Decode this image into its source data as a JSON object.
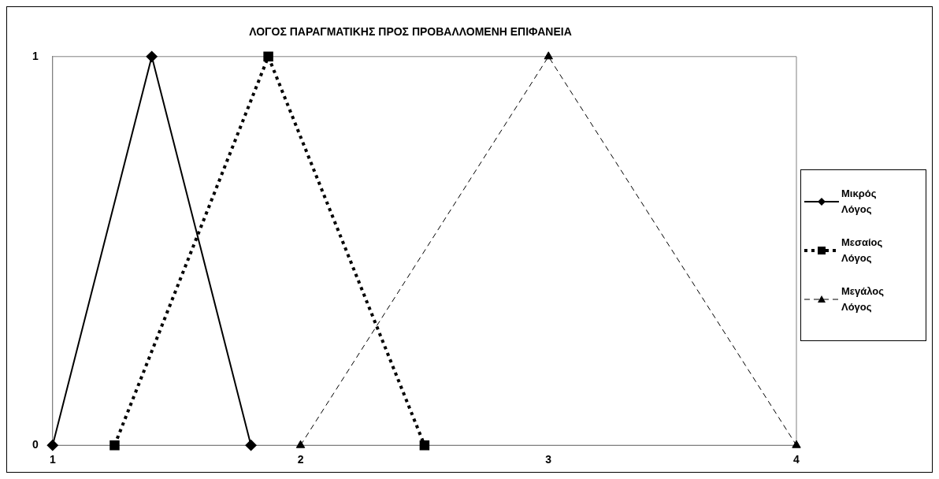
{
  "chart_data": {
    "type": "line",
    "title": "ΛΟΓΟΣ ΠΑΡΑΓΜΑΤΙΚΗΣ ΠΡΟΣ ΠΡΟΒΑΛΛΟΜΕΝΗ ΕΠΙΦΑΝΕΙΑ",
    "xlim": [
      1,
      4
    ],
    "xticks": [
      1,
      2,
      3,
      4
    ],
    "ylim": [
      0,
      1
    ],
    "yticks": [
      0,
      1
    ],
    "grid": false,
    "legend": "right",
    "series": [
      {
        "name": "Μικρός Λόγος",
        "color": "#000000",
        "x": [
          1,
          1.4,
          1.8
        ],
        "values": [
          0,
          1,
          0
        ],
        "marker": "diamond",
        "line_style": "solid"
      },
      {
        "name": "Μεσαίος Λόγος",
        "color": "#000000",
        "x": [
          1.25,
          1.87,
          2.5
        ],
        "values": [
          0,
          1,
          0
        ],
        "marker": "square",
        "line_style": "dotted"
      },
      {
        "name": "Μεγάλος Λόγος",
        "color": "#000000",
        "x": [
          2,
          3,
          4
        ],
        "values": [
          0,
          1,
          0
        ],
        "marker": "triangle",
        "line_style": "dashed"
      }
    ]
  }
}
